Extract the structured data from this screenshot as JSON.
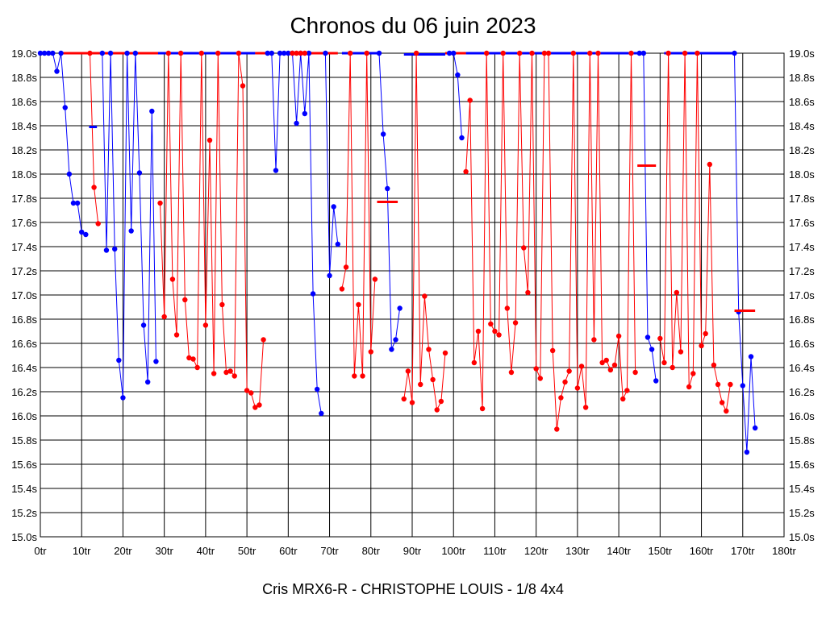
{
  "chart_data": {
    "type": "line",
    "title": "Chronos du 06 juin 2023",
    "footer": "Cris MRX6-R - CHRISTOPHE LOUIS - 1/8 4x4",
    "x_tick_labels": [
      "0tr",
      "10tr",
      "20tr",
      "30tr",
      "40tr",
      "50tr",
      "60tr",
      "70tr",
      "80tr",
      "90tr",
      "100tr",
      "110tr",
      "120tr",
      "130tr",
      "140tr",
      "150tr",
      "160tr",
      "170tr",
      "180tr"
    ],
    "y_tick_labels": [
      "19.0s",
      "18.8s",
      "18.6s",
      "18.4s",
      "18.2s",
      "18.0s",
      "17.8s",
      "17.6s",
      "17.4s",
      "17.2s",
      "17.0s",
      "16.8s",
      "16.6s",
      "16.4s",
      "16.2s",
      "16.0s",
      "15.8s",
      "15.6s",
      "15.4s",
      "15.2s",
      "15.0s"
    ],
    "xlim": [
      0,
      180
    ],
    "ylim": [
      15.0,
      19.0
    ],
    "colors": {
      "blue": "#0000ff",
      "red": "#ff0000",
      "grid": "#000000"
    },
    "series": [
      {
        "name": "blue-1",
        "color": "blue",
        "x": [
          0,
          1,
          2,
          3,
          4,
          5,
          6,
          7,
          8,
          9,
          10,
          11
        ],
        "y": [
          19.0,
          19.0,
          19.0,
          19.0,
          18.85,
          19.0,
          18.55,
          18.0,
          17.76,
          17.76,
          17.52,
          17.5
        ]
      },
      {
        "name": "red-1",
        "color": "red",
        "x": [
          12,
          13,
          14
        ],
        "y": [
          19.0,
          17.89,
          17.59
        ]
      },
      {
        "name": "blue-2",
        "color": "blue",
        "x": [
          15,
          16,
          17,
          18,
          19,
          20,
          21,
          22,
          23,
          24,
          25,
          26,
          27,
          28
        ],
        "y": [
          19.0,
          17.37,
          19.0,
          17.38,
          16.46,
          16.15,
          19.0,
          17.53,
          19.0,
          18.01,
          16.75,
          16.28,
          18.52,
          16.45
        ]
      },
      {
        "name": "red-2",
        "color": "red",
        "x": [
          29,
          30,
          31,
          32,
          33,
          34,
          35,
          36,
          37,
          38,
          39,
          40,
          41,
          42,
          43,
          44,
          45,
          46,
          47,
          48,
          49,
          50,
          51,
          52,
          53,
          54
        ],
        "y": [
          17.76,
          16.82,
          19.0,
          17.13,
          16.67,
          19.0,
          16.96,
          16.48,
          16.47,
          16.4,
          19.0,
          16.75,
          18.28,
          16.35,
          19.0,
          16.92,
          16.36,
          16.37,
          16.33,
          19.0,
          18.73,
          16.21,
          16.19,
          16.07,
          16.09,
          16.63
        ]
      },
      {
        "name": "blue-3",
        "color": "blue",
        "x": [
          55,
          56,
          57,
          58,
          59,
          60,
          61,
          62,
          63,
          64,
          65,
          66,
          67,
          68
        ],
        "y": [
          19.0,
          19.0,
          18.03,
          19.0,
          19.0,
          19.0,
          19.0,
          18.42,
          19.0,
          18.5,
          19.0,
          17.01,
          16.22,
          16.02
        ]
      },
      {
        "name": "red-3",
        "color": "red",
        "x": [
          61,
          62,
          63,
          64
        ],
        "y": [
          19.0,
          19.0,
          19.0,
          19.0
        ]
      },
      {
        "name": "blue-4",
        "color": "blue",
        "x": [
          69,
          70,
          71,
          72
        ],
        "y": [
          19.0,
          17.16,
          17.73,
          17.42
        ]
      },
      {
        "name": "red-4",
        "color": "red",
        "x": [
          73,
          74,
          75,
          76,
          77,
          78,
          79,
          80,
          81
        ],
        "y": [
          17.05,
          17.23,
          19.0,
          16.33,
          16.92,
          16.33,
          19.0,
          16.53,
          17.13
        ]
      },
      {
        "name": "blue-5",
        "color": "blue",
        "x": [
          82,
          83,
          84,
          85,
          86,
          87
        ],
        "y": [
          19.0,
          18.33,
          17.88,
          16.55,
          16.63,
          16.89
        ]
      },
      {
        "name": "red-5",
        "color": "red",
        "x": [
          88,
          89,
          90,
          91,
          92,
          93,
          94,
          95,
          96,
          97,
          98
        ],
        "y": [
          16.14,
          16.37,
          16.11,
          19.0,
          16.26,
          16.99,
          16.55,
          16.3,
          16.05,
          16.12,
          16.52
        ]
      },
      {
        "name": "blue-6",
        "color": "blue",
        "x": [
          99,
          100,
          101,
          102
        ],
        "y": [
          19.0,
          19.0,
          18.82,
          18.3
        ]
      },
      {
        "name": "red-6",
        "color": "red",
        "x": [
          103,
          104,
          105,
          106,
          107,
          108,
          109,
          110,
          111,
          112,
          113,
          114,
          115,
          116,
          117,
          118,
          119,
          120,
          121,
          122,
          123,
          124,
          125,
          126,
          127,
          128,
          129,
          130,
          131,
          132,
          133,
          134,
          135,
          136,
          137,
          138,
          139,
          140,
          141,
          142,
          143,
          144
        ],
        "y": [
          18.02,
          18.61,
          16.44,
          16.7,
          16.06,
          19.0,
          16.76,
          16.7,
          16.67,
          19.0,
          16.89,
          16.36,
          16.77,
          19.0,
          17.39,
          17.02,
          19.0,
          16.39,
          16.31,
          19.0,
          19.0,
          16.54,
          15.89,
          16.15,
          16.28,
          16.37,
          19.0,
          16.23,
          16.41,
          16.07,
          19.0,
          16.63,
          19.0,
          16.44,
          16.46,
          16.38,
          16.42,
          16.66,
          16.14,
          16.21,
          19.0,
          16.36
        ]
      },
      {
        "name": "blue-7",
        "color": "blue",
        "x": [
          145,
          146,
          147,
          148,
          149
        ],
        "y": [
          19.0,
          19.0,
          16.65,
          16.55,
          16.29
        ]
      },
      {
        "name": "red-7",
        "color": "red",
        "x": [
          150,
          151,
          152,
          153,
          154,
          155,
          156,
          157,
          158,
          159,
          160,
          161,
          162,
          163,
          164,
          165,
          166,
          167
        ],
        "y": [
          16.64,
          16.44,
          19.0,
          16.4,
          17.02,
          16.53,
          19.0,
          16.24,
          16.35,
          19.0,
          16.58,
          16.68,
          18.08,
          16.42,
          16.26,
          16.11,
          16.04,
          16.26
        ]
      },
      {
        "name": "blue-8",
        "color": "blue",
        "x": [
          168,
          169,
          170,
          171,
          172,
          173
        ],
        "y": [
          19.0,
          16.86,
          16.25,
          15.7,
          16.49,
          15.9
        ]
      }
    ],
    "flat_segments": [
      {
        "color": "red",
        "x0": 5.5,
        "x1": 28.5,
        "y": 19.0
      },
      {
        "color": "blue",
        "x0": 28.5,
        "x1": 52,
        "y": 19.0
      },
      {
        "color": "red",
        "x0": 52,
        "x1": 56,
        "y": 19.0
      },
      {
        "color": "red",
        "x0": 60,
        "x1": 72,
        "y": 19.0
      },
      {
        "color": "blue",
        "x0": 73,
        "x1": 82,
        "y": 19.0
      },
      {
        "color": "blue",
        "x0": 88,
        "x1": 98,
        "y": 18.99
      },
      {
        "color": "blue",
        "x0": 103,
        "x1": 145,
        "y": 19.0
      },
      {
        "color": "blue",
        "x0": 151,
        "x1": 168,
        "y": 19.0
      },
      {
        "color": "red",
        "x0": 98,
        "x1": 103,
        "y": 19.0
      }
    ],
    "markers": [
      {
        "color": "blue",
        "x0": 11.8,
        "x1": 13.7,
        "y": 18.39
      },
      {
        "color": "red",
        "x0": 81.5,
        "x1": 86.5,
        "y": 17.77
      },
      {
        "color": "red",
        "x0": 144.5,
        "x1": 149,
        "y": 18.07
      },
      {
        "color": "red",
        "x0": 168,
        "x1": 173,
        "y": 16.87
      }
    ]
  }
}
